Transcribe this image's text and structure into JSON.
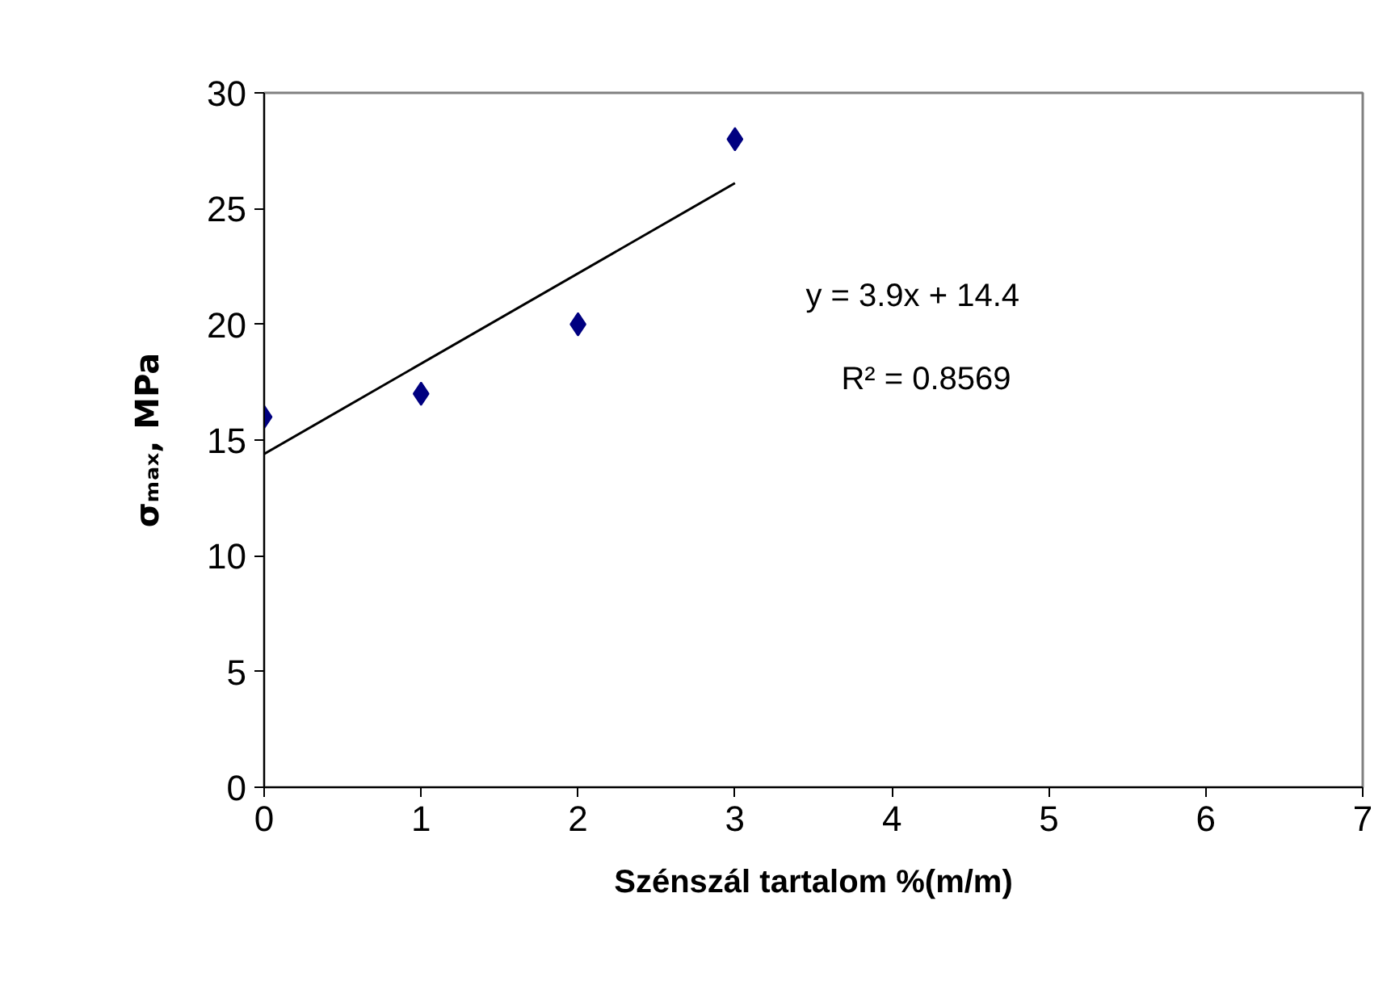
{
  "chart_data": {
    "type": "scatter",
    "xlabel": "Szénszál tartalom %(m/m)",
    "ylabel": "σₘₐₓ, MPa",
    "x": [
      0,
      1,
      2,
      3
    ],
    "series": [
      {
        "color": "#000080",
        "values": [
          16,
          17,
          20,
          28
        ],
        "marker": "diamond"
      },
      {
        "type": "line",
        "color": "#000000",
        "x": [
          0,
          3
        ],
        "values": [
          14.4,
          26.1
        ],
        "marker": "none"
      }
    ],
    "xlim": [
      0,
      7
    ],
    "ylim": [
      0,
      30
    ],
    "xticks": [
      0,
      1,
      2,
      3,
      4,
      5,
      6,
      7
    ],
    "yticks": [
      0,
      5,
      10,
      15,
      20,
      25,
      30
    ],
    "grid": false,
    "annotations": [
      "y = 3.9x + 14.4",
      "R² = 0.8569"
    ]
  }
}
